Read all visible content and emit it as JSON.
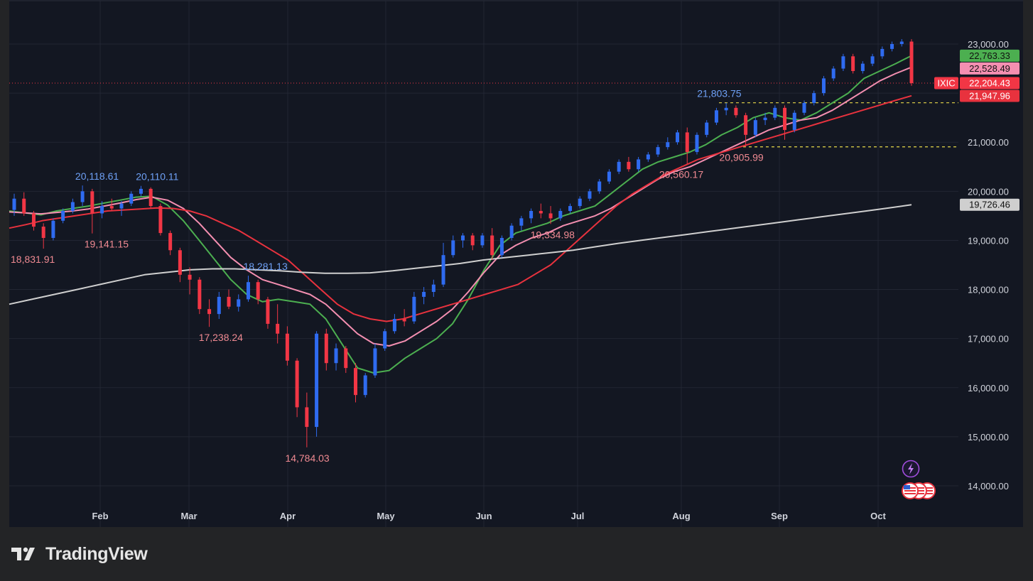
{
  "brand": {
    "name": "TradingView",
    "logo_icon": "tradingview-logo-icon"
  },
  "colors": {
    "background": "#232426",
    "plot_background": "#131722",
    "grid": "#222633",
    "up_candle": "#2f6bf0",
    "down_candle": "#f23645",
    "up_label": "#6ea0f5",
    "down_label": "#f08a92",
    "ma_green": "#4caf50",
    "ma_pink": "#f48fb1",
    "ma_red": "#e8323e",
    "ma_gray": "#cfcfcf",
    "dashed_level": "#e8d84a"
  },
  "chart_data": {
    "type": "candlestick",
    "symbol": "IXIC",
    "x_axis": {
      "months": [
        "Feb",
        "Mar",
        "Apr",
        "May",
        "Jun",
        "Jul",
        "Aug",
        "Sep",
        "Oct"
      ]
    },
    "y_axis": {
      "position": "right",
      "range": [
        13650,
        23350
      ],
      "ticks": [
        14000,
        15000,
        16000,
        17000,
        18000,
        19000,
        20000,
        21000,
        22000,
        23000
      ],
      "tick_labels": [
        "14,000.00",
        "15,000.00",
        "16,000.00",
        "17,000.00",
        "18,000.00",
        "19,000.00",
        "20,000.00",
        "21,000.00",
        "22,000.00",
        "23,000.00"
      ]
    },
    "grid": true,
    "last_close": 22204.43,
    "price_labels": [
      {
        "value": 22763.33,
        "text": "22,763.33",
        "color": "#4caf50",
        "text_color": "#111111"
      },
      {
        "value": 22528.49,
        "text": "22,528.49",
        "color": "#f48fb1",
        "text_color": "#111111"
      },
      {
        "value": 22204.43,
        "text": "22,204.43",
        "color": "#f23645",
        "text_color": "#ffffff",
        "tag": "IXIC"
      },
      {
        "value": 21947.96,
        "text": "21,947.96",
        "color": "#e8323e",
        "text_color": "#ffffff"
      },
      {
        "value": 19726.46,
        "text": "19,726.46",
        "color": "#cfcfcf",
        "text_color": "#111111"
      }
    ],
    "annotations": [
      {
        "text": "20,118.61",
        "kind": "high",
        "date": "2025-01-31",
        "value": 20118.61
      },
      {
        "text": "20,110.11",
        "kind": "high",
        "date": "2025-02-19",
        "value": 20110.11
      },
      {
        "text": "18,831.91",
        "kind": "low",
        "date": "2025-01-13",
        "value": 18831.91
      },
      {
        "text": "19,141.15",
        "kind": "low",
        "date": "2025-02-03",
        "value": 19141.15
      },
      {
        "text": "18,281.13",
        "kind": "high",
        "date": "2025-03-25",
        "value": 18281.13
      },
      {
        "text": "17,238.24",
        "kind": "low",
        "date": "2025-03-11",
        "value": 17238.24
      },
      {
        "text": "14,784.03",
        "kind": "low",
        "date": "2025-04-07",
        "value": 14784.03
      },
      {
        "text": "19,334.98",
        "kind": "low",
        "date": "2025-06-23",
        "value": 19334.98
      },
      {
        "text": "21,803.75",
        "kind": "high",
        "date": "2025-08-13",
        "value": 21803.75
      },
      {
        "text": "20,560.17",
        "kind": "low",
        "date": "2025-08-01",
        "value": 20560.17
      },
      {
        "text": "20,905.99",
        "kind": "low",
        "date": "2025-08-20",
        "value": 20905.99
      }
    ],
    "dashed_levels": [
      21803.75,
      20905.99
    ],
    "moving_averages": [
      {
        "color": "#4caf50",
        "last": 22763.33,
        "points": [
          19600,
          19560,
          19520,
          19600,
          19650,
          19700,
          19760,
          19820,
          19880,
          19900,
          19720,
          19400,
          19000,
          18600,
          18200,
          17900,
          17750,
          17800,
          17750,
          17700,
          17400,
          16900,
          16400,
          16300,
          16350,
          16600,
          16800,
          17000,
          17300,
          17800,
          18400,
          18900,
          19150,
          19250,
          19350,
          19500,
          19600,
          19700,
          19950,
          20200,
          20450,
          20600,
          20700,
          20800,
          20950,
          21150,
          21300,
          21500,
          21600,
          21500,
          21450,
          21600,
          21800,
          22000,
          22300,
          22450,
          22600,
          22763
        ]
      },
      {
        "color": "#f48fb1",
        "last": 22528.49,
        "points": [
          19580,
          19560,
          19540,
          19570,
          19600,
          19640,
          19700,
          19760,
          19830,
          19880,
          19820,
          19650,
          19350,
          19000,
          18650,
          18400,
          18200,
          18100,
          18000,
          17900,
          17700,
          17400,
          17100,
          16900,
          16850,
          16950,
          17150,
          17350,
          17600,
          17950,
          18350,
          18700,
          18900,
          19050,
          19150,
          19300,
          19400,
          19500,
          19650,
          19850,
          20050,
          20250,
          20400,
          20500,
          20650,
          20800,
          20950,
          21100,
          21250,
          21350,
          21450,
          21500,
          21650,
          21850,
          22050,
          22250,
          22400,
          22528
        ]
      },
      {
        "color": "#e8323e",
        "last": 21947.96,
        "points": [
          19250,
          19320,
          19400,
          19450,
          19500,
          19550,
          19600,
          19620,
          19640,
          19660,
          19650,
          19600,
          19500,
          19350,
          19200,
          19000,
          18800,
          18600,
          18300,
          18000,
          17700,
          17500,
          17400,
          17350,
          17400,
          17500,
          17600,
          17700,
          17800,
          17900,
          18000,
          18100,
          18300,
          18500,
          18800,
          19100,
          19400,
          19700,
          19950,
          20150,
          20350,
          20500,
          20650,
          20750,
          20850,
          20950,
          21050,
          21150,
          21250,
          21350,
          21450,
          21550,
          21650,
          21750,
          21850,
          21947
        ]
      },
      {
        "color": "#cfcfcf",
        "last": 19726.46,
        "points": [
          17700,
          17800,
          17900,
          18000,
          18100,
          18200,
          18300,
          18350,
          18400,
          18420,
          18420,
          18400,
          18380,
          18350,
          18330,
          18330,
          18340,
          18380,
          18430,
          18480,
          18530,
          18600,
          18650,
          18700,
          18750,
          18800,
          18870,
          18940,
          19000,
          19060,
          19120,
          19180,
          19240,
          19300,
          19360,
          19420,
          19480,
          19540,
          19600,
          19660,
          19726
        ]
      }
    ],
    "candles": [
      {
        "o": 19620,
        "h": 19950,
        "l": 19500,
        "c": 19850
      },
      {
        "o": 19850,
        "h": 19980,
        "l": 19500,
        "c": 19550
      },
      {
        "o": 19550,
        "h": 19600,
        "l": 19200,
        "c": 19280
      },
      {
        "o": 19280,
        "h": 19350,
        "l": 18831.91,
        "c": 19050
      },
      {
        "o": 19050,
        "h": 19450,
        "l": 19000,
        "c": 19400
      },
      {
        "o": 19400,
        "h": 19650,
        "l": 19350,
        "c": 19600
      },
      {
        "o": 19600,
        "h": 19850,
        "l": 19550,
        "c": 19780
      },
      {
        "o": 19780,
        "h": 20118.61,
        "l": 19700,
        "c": 20000
      },
      {
        "o": 20000,
        "h": 20050,
        "l": 19141.15,
        "c": 19550
      },
      {
        "o": 19550,
        "h": 19800,
        "l": 19450,
        "c": 19700
      },
      {
        "o": 19700,
        "h": 19850,
        "l": 19600,
        "c": 19650
      },
      {
        "o": 19650,
        "h": 19800,
        "l": 19500,
        "c": 19750
      },
      {
        "o": 19750,
        "h": 20000,
        "l": 19700,
        "c": 19950
      },
      {
        "o": 19950,
        "h": 20110.11,
        "l": 19900,
        "c": 20050
      },
      {
        "o": 20050,
        "h": 20080,
        "l": 19650,
        "c": 19700
      },
      {
        "o": 19700,
        "h": 19750,
        "l": 19100,
        "c": 19150
      },
      {
        "o": 19150,
        "h": 19200,
        "l": 18700,
        "c": 18800
      },
      {
        "o": 18800,
        "h": 18850,
        "l": 18150,
        "c": 18300
      },
      {
        "o": 18300,
        "h": 18450,
        "l": 17900,
        "c": 18200
      },
      {
        "o": 18200,
        "h": 18250,
        "l": 17500,
        "c": 17600
      },
      {
        "o": 17600,
        "h": 17800,
        "l": 17238.24,
        "c": 17500
      },
      {
        "o": 17500,
        "h": 17950,
        "l": 17400,
        "c": 17850
      },
      {
        "o": 17850,
        "h": 18000,
        "l": 17600,
        "c": 17650
      },
      {
        "o": 17650,
        "h": 17900,
        "l": 17550,
        "c": 17800
      },
      {
        "o": 17800,
        "h": 18281.13,
        "l": 17750,
        "c": 18150
      },
      {
        "o": 18150,
        "h": 18200,
        "l": 17700,
        "c": 17800
      },
      {
        "o": 17800,
        "h": 17850,
        "l": 17200,
        "c": 17300
      },
      {
        "o": 17300,
        "h": 17700,
        "l": 16900,
        "c": 17100
      },
      {
        "o": 17100,
        "h": 17250,
        "l": 16450,
        "c": 16550
      },
      {
        "o": 16550,
        "h": 16600,
        "l": 15400,
        "c": 15600
      },
      {
        "o": 15600,
        "h": 15900,
        "l": 14784.03,
        "c": 15200
      },
      {
        "o": 15200,
        "h": 17150,
        "l": 15000,
        "c": 17100
      },
      {
        "o": 17100,
        "h": 17200,
        "l": 16350,
        "c": 16500
      },
      {
        "o": 16500,
        "h": 16900,
        "l": 16350,
        "c": 16800
      },
      {
        "o": 16800,
        "h": 16850,
        "l": 16300,
        "c": 16400
      },
      {
        "o": 16400,
        "h": 16500,
        "l": 15700,
        "c": 15850
      },
      {
        "o": 15850,
        "h": 16300,
        "l": 15800,
        "c": 16250
      },
      {
        "o": 16250,
        "h": 16900,
        "l": 16200,
        "c": 16800
      },
      {
        "o": 16800,
        "h": 17200,
        "l": 16750,
        "c": 17150
      },
      {
        "o": 17150,
        "h": 17500,
        "l": 17100,
        "c": 17400
      },
      {
        "o": 17400,
        "h": 17600,
        "l": 17250,
        "c": 17350
      },
      {
        "o": 17350,
        "h": 17950,
        "l": 17300,
        "c": 17850
      },
      {
        "o": 17850,
        "h": 18050,
        "l": 17700,
        "c": 17950
      },
      {
        "o": 17950,
        "h": 18200,
        "l": 17850,
        "c": 18100
      },
      {
        "o": 18100,
        "h": 18950,
        "l": 18050,
        "c": 18700
      },
      {
        "o": 18700,
        "h": 19100,
        "l": 18650,
        "c": 19000
      },
      {
        "o": 19000,
        "h": 19150,
        "l": 18850,
        "c": 19100
      },
      {
        "o": 19100,
        "h": 19150,
        "l": 18800,
        "c": 18900
      },
      {
        "o": 18900,
        "h": 19150,
        "l": 18850,
        "c": 19100
      },
      {
        "o": 19100,
        "h": 19250,
        "l": 18600,
        "c": 18700
      },
      {
        "o": 18700,
        "h": 19100,
        "l": 18650,
        "c": 19050
      },
      {
        "o": 19050,
        "h": 19350,
        "l": 19000,
        "c": 19300
      },
      {
        "o": 19300,
        "h": 19500,
        "l": 19200,
        "c": 19450
      },
      {
        "o": 19450,
        "h": 19650,
        "l": 19350,
        "c": 19600
      },
      {
        "o": 19600,
        "h": 19750,
        "l": 19450,
        "c": 19550
      },
      {
        "o": 19550,
        "h": 19700,
        "l": 19334.98,
        "c": 19450
      },
      {
        "o": 19450,
        "h": 19650,
        "l": 19400,
        "c": 19600
      },
      {
        "o": 19600,
        "h": 19750,
        "l": 19550,
        "c": 19700
      },
      {
        "o": 19700,
        "h": 19900,
        "l": 19650,
        "c": 19850
      },
      {
        "o": 19850,
        "h": 20050,
        "l": 19800,
        "c": 20000
      },
      {
        "o": 20000,
        "h": 20250,
        "l": 19950,
        "c": 20200
      },
      {
        "o": 20200,
        "h": 20450,
        "l": 20150,
        "c": 20400
      },
      {
        "o": 20400,
        "h": 20650,
        "l": 20350,
        "c": 20600
      },
      {
        "o": 20600,
        "h": 20700,
        "l": 20400,
        "c": 20450
      },
      {
        "o": 20450,
        "h": 20700,
        "l": 20400,
        "c": 20650
      },
      {
        "o": 20650,
        "h": 20800,
        "l": 20600,
        "c": 20750
      },
      {
        "o": 20750,
        "h": 20950,
        "l": 20700,
        "c": 20900
      },
      {
        "o": 20900,
        "h": 21100,
        "l": 20850,
        "c": 21000
      },
      {
        "o": 21000,
        "h": 21250,
        "l": 20950,
        "c": 21200
      },
      {
        "o": 21200,
        "h": 21300,
        "l": 20560.17,
        "c": 20800
      },
      {
        "o": 20800,
        "h": 21200,
        "l": 20750,
        "c": 21150
      },
      {
        "o": 21150,
        "h": 21450,
        "l": 21100,
        "c": 21400
      },
      {
        "o": 21400,
        "h": 21700,
        "l": 21350,
        "c": 21650
      },
      {
        "o": 21650,
        "h": 21803.75,
        "l": 21550,
        "c": 21700
      },
      {
        "o": 21700,
        "h": 21750,
        "l": 21500,
        "c": 21550
      },
      {
        "o": 21550,
        "h": 21600,
        "l": 20905.99,
        "c": 21150
      },
      {
        "o": 21150,
        "h": 21500,
        "l": 21100,
        "c": 21450
      },
      {
        "o": 21450,
        "h": 21600,
        "l": 21350,
        "c": 21500
      },
      {
        "o": 21500,
        "h": 21750,
        "l": 21450,
        "c": 21700
      },
      {
        "o": 21700,
        "h": 21750,
        "l": 21050,
        "c": 21250
      },
      {
        "o": 21250,
        "h": 21650,
        "l": 21200,
        "c": 21600
      },
      {
        "o": 21600,
        "h": 21850,
        "l": 21550,
        "c": 21800
      },
      {
        "o": 21800,
        "h": 22050,
        "l": 21750,
        "c": 22000
      },
      {
        "o": 22000,
        "h": 22350,
        "l": 21950,
        "c": 22300
      },
      {
        "o": 22300,
        "h": 22550,
        "l": 22250,
        "c": 22500
      },
      {
        "o": 22500,
        "h": 22800,
        "l": 22450,
        "c": 22750
      },
      {
        "o": 22750,
        "h": 22800,
        "l": 22400,
        "c": 22450
      },
      {
        "o": 22450,
        "h": 22650,
        "l": 22400,
        "c": 22600
      },
      {
        "o": 22600,
        "h": 22800,
        "l": 22550,
        "c": 22750
      },
      {
        "o": 22750,
        "h": 22950,
        "l": 22700,
        "c": 22900
      },
      {
        "o": 22900,
        "h": 23050,
        "l": 22850,
        "c": 23000
      },
      {
        "o": 23000,
        "h": 23100,
        "l": 22950,
        "c": 23050
      },
      {
        "o": 23050,
        "h": 23100,
        "l": 22150,
        "c": 22204.43
      }
    ]
  }
}
